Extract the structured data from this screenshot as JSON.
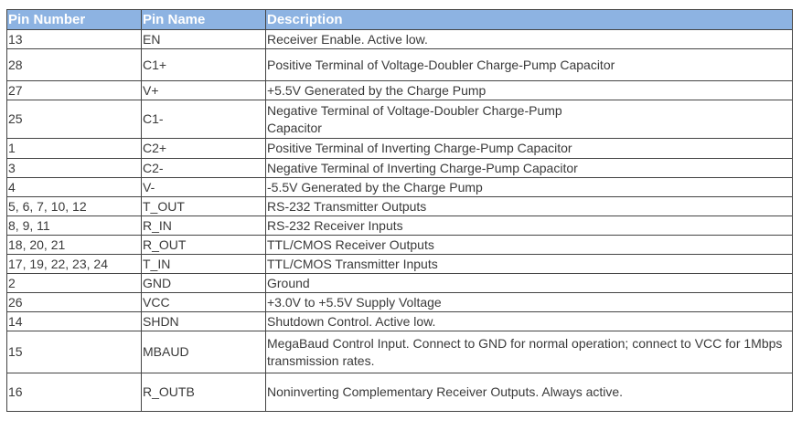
{
  "table": {
    "headers": [
      "Pin Number",
      "Pin Name",
      "Description"
    ],
    "header_color": "#8db3e2",
    "rows": [
      {
        "number": "13",
        "name": "EN",
        "description": "Receiver Enable. Active low."
      },
      {
        "number": "28",
        "name": "C1+",
        "description": "Positive Terminal of Voltage-Doubler Charge-Pump Capacitor"
      },
      {
        "number": "27",
        "name": "V+",
        "description": "+5.5V Generated by the Charge Pump"
      },
      {
        "number": "25",
        "name": "C1-",
        "description": "Negative Terminal of Voltage-Doubler Charge-Pump Capacitor"
      },
      {
        "number": "1",
        "name": "C2+",
        "description": "Positive Terminal of Inverting Charge-Pump Capacitor"
      },
      {
        "number": "3",
        "name": "C2-",
        "description": "Negative Terminal of Inverting Charge-Pump Capacitor"
      },
      {
        "number": "4",
        "name": "V-",
        "description": "-5.5V Generated by the Charge Pump"
      },
      {
        "number": "5, 6, 7, 10, 12",
        "name": "T_OUT",
        "description": "RS-232 Transmitter Outputs"
      },
      {
        "number": "8, 9, 11",
        "name": "R_IN",
        "description": "RS-232 Receiver Inputs"
      },
      {
        "number": "18, 20, 21",
        "name": "R_OUT",
        "description": "TTL/CMOS Receiver Outputs"
      },
      {
        "number": "17, 19, 22, 23, 24",
        "name": "T_IN",
        "description": "TTL/CMOS Transmitter Inputs"
      },
      {
        "number": "2",
        "name": "GND",
        "description": "Ground"
      },
      {
        "number": "26",
        "name": "VCC",
        "description": "+3.0V to +5.5V Supply Voltage"
      },
      {
        "number": "14",
        "name": "SHDN",
        "description": "Shutdown Control. Active low."
      },
      {
        "number": "15",
        "name": "MBAUD",
        "description": "MegaBaud Control Input. Connect to GND for normal operation; connect to VCC for 1Mbps transmission rates."
      },
      {
        "number": "16",
        "name": "R_OUTB",
        "description": "Noninverting Complementary Receiver Outputs. Always active."
      }
    ]
  }
}
